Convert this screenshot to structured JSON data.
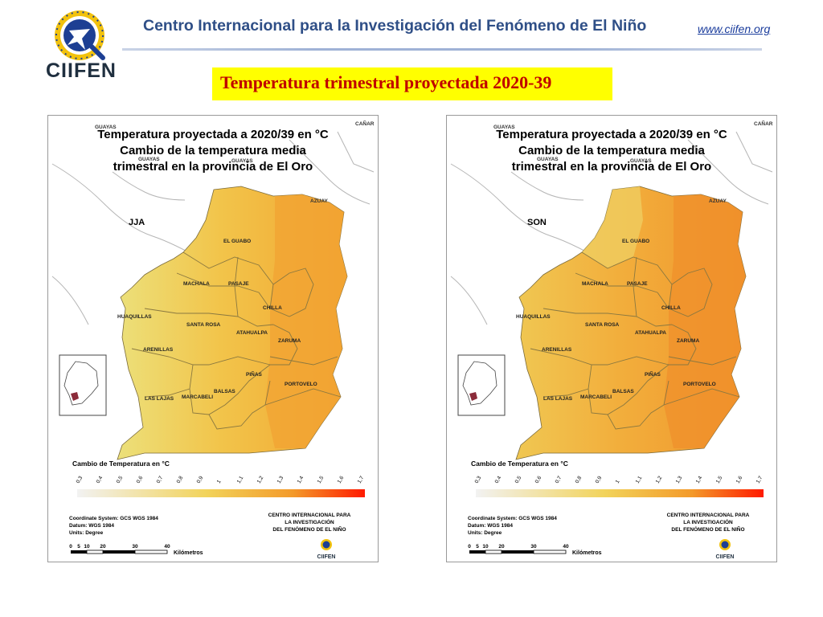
{
  "header": {
    "logo_text": "CIIFEN",
    "org_name": "Centro Internacional para la Investigación del Fenómeno de El Niño",
    "url": "www.ciifen.org"
  },
  "slide_title": "Temperatura trimestral proyectada 2020-39",
  "colors": {
    "title_text": "#c00000",
    "title_band": "#ffff00",
    "header_text": "#2f4f87",
    "scale_low": "#f2f2f2",
    "scale_mid": "#f2d35a",
    "scale_high": "#ff1a00"
  },
  "maps": [
    {
      "season": "JJA",
      "title_lines": [
        "Temperatura proyectada a 2020/39 en °C",
        "Cambio de la temperatura media",
        "trimestral en la provincia de El Oro"
      ],
      "neighbor_labels": [
        "GUAYAS",
        "GUAYAS",
        "GUAYAS",
        "CAÑAR",
        "AZUAY"
      ],
      "cantons": [
        "EL GUABO",
        "MACHALA",
        "PASAJE",
        "CHILLA",
        "HUAQUILLAS",
        "SANTA ROSA",
        "ATAHUALPA",
        "ZARUMA",
        "ARENILLAS",
        "PIÑAS",
        "PORTOVELO",
        "LAS LAJAS",
        "MARCABELI",
        "BALSAS"
      ],
      "legend_title": "Cambio de Temperatura en °C",
      "legend_ticks": [
        "0,3",
        "0,4",
        "0,5",
        "0,6",
        "0,7",
        "0,8",
        "0,9",
        "1",
        "1,1",
        "1,2",
        "1,3",
        "1,4",
        "1,5",
        "1,6",
        "1,7"
      ],
      "info_lines": [
        "Coordinate System: GCS WGS 1984",
        "Datum: WGS 1984",
        "Units: Degree"
      ],
      "credit_lines": [
        "CENTRO INTERNACIONAL PARA",
        "LA INVESTIGACIÓN",
        "DEL FENÓMENO DE EL NIÑO"
      ],
      "credit_logo_text": "CIIFEN",
      "scale_ticks": [
        "0",
        "5",
        "10",
        "20",
        "30",
        "40"
      ],
      "scale_unit": "Kilómetros"
    },
    {
      "season": "SON",
      "title_lines": [
        "Temperatura proyectada a 2020/39 en °C",
        "Cambio de la temperatura media",
        "trimestral en la provincia de El Oro"
      ],
      "neighbor_labels": [
        "GUAYAS",
        "GUAYAS",
        "GUAYAS",
        "CAÑAR",
        "AZUAY"
      ],
      "cantons": [
        "EL GUABO",
        "MACHALA",
        "PASAJE",
        "CHILLA",
        "HUAQUILLAS",
        "SANTA ROSA",
        "ATAHUALPA",
        "ZARUMA",
        "ARENILLAS",
        "PIÑAS",
        "PORTOVELO",
        "LAS LAJAS",
        "MARCABELI",
        "BALSAS"
      ],
      "legend_title": "Cambio de Temperatura en °C",
      "legend_ticks": [
        "0,3",
        "0,4",
        "0,5",
        "0,6",
        "0,7",
        "0,8",
        "0,9",
        "1",
        "1,1",
        "1,2",
        "1,3",
        "1,4",
        "1,5",
        "1,6",
        "1,7"
      ],
      "info_lines": [
        "Coordinate System: GCS WGS 1984",
        "Datum: WGS 1984",
        "Units: Degree"
      ],
      "credit_lines": [
        "CENTRO INTERNACIONAL PARA",
        "LA INVESTIGACIÓN",
        "DEL FENÓMENO DE EL NIÑO"
      ],
      "credit_logo_text": "CIIFEN",
      "scale_ticks": [
        "0",
        "5",
        "10",
        "20",
        "30",
        "40"
      ],
      "scale_unit": "Kilómetros"
    }
  ]
}
